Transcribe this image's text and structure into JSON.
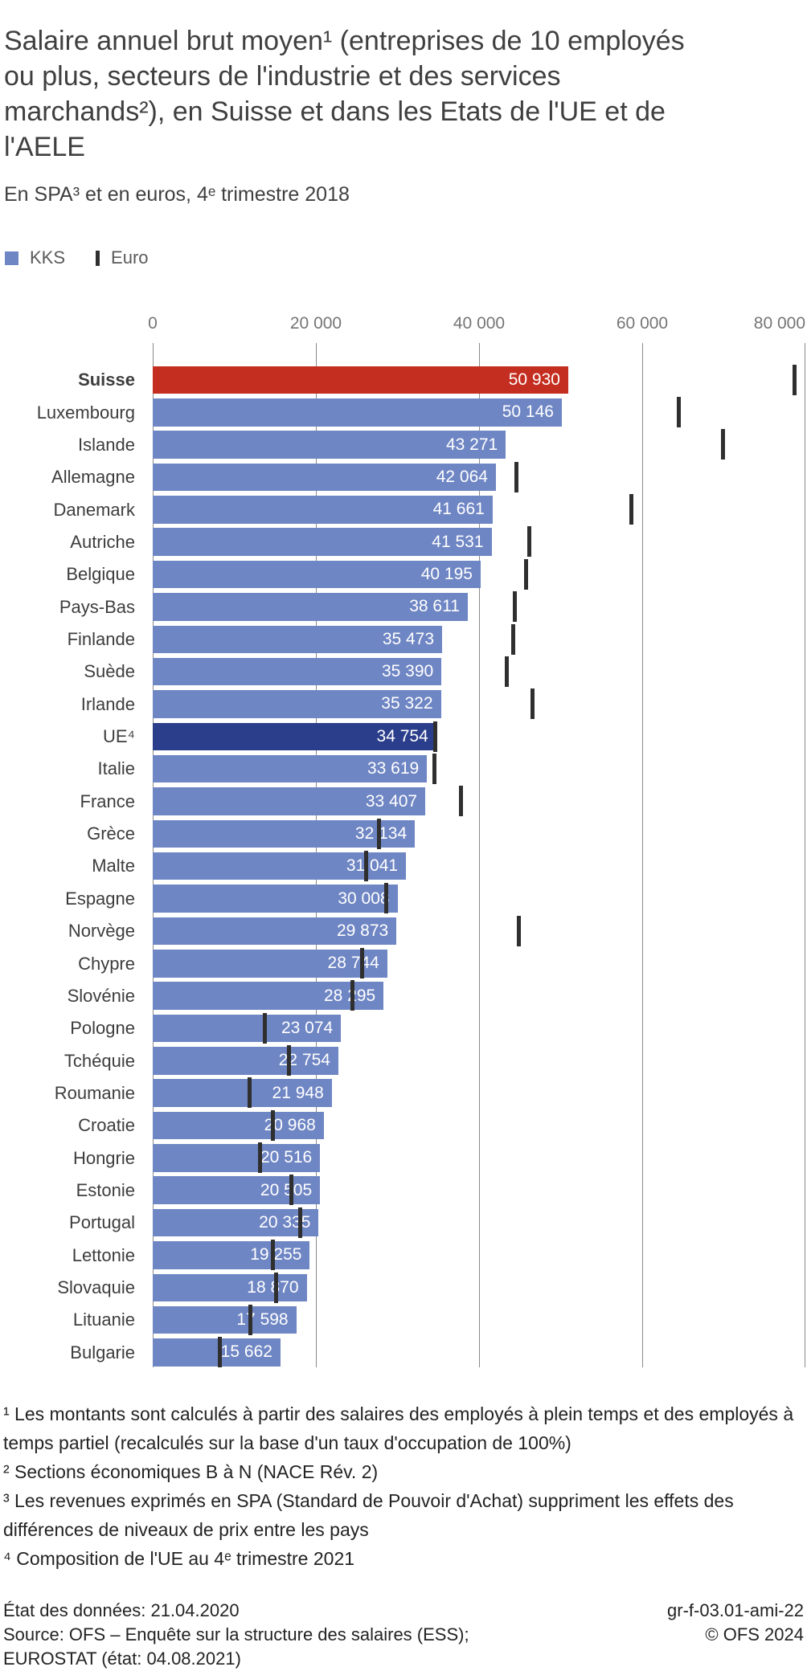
{
  "header": {
    "title": "Salaire annuel brut moyen¹ (entreprises de 10 employés ou plus, secteurs de l'industrie et des services marchands²), en Suisse et dans les Etats de l'UE et de l'AELE",
    "subtitle": "En SPA³ et en euros, 4ᵉ trimestre 2018"
  },
  "legend": {
    "kks_label": "KKS",
    "euro_label": "Euro"
  },
  "chart_data": {
    "type": "bar",
    "orientation": "horizontal",
    "title": "Salaire annuel brut moyen, en SPA et en euros, 4e trimestre 2018",
    "grid": true,
    "legend_position": "top-left",
    "x_axis": {
      "min": 0,
      "max": 80000,
      "tick_values": [
        0,
        20000,
        40000,
        60000,
        80000
      ],
      "tick_labels": [
        "0",
        "20 000",
        "40 000",
        "60 000",
        "80 000"
      ]
    },
    "series_note": "kks = bar length (labelled value in SPA/KKS); euro = position of dark tick mark, value estimated from chart pixels",
    "rows": [
      {
        "country": "Suisse",
        "kks": 50930,
        "kks_label": "50 930",
        "euro": 78700,
        "highlight": "suisse"
      },
      {
        "country": "Luxembourg",
        "kks": 50146,
        "kks_label": "50 146",
        "euro": 64500,
        "highlight": null
      },
      {
        "country": "Islande",
        "kks": 43271,
        "kks_label": "43 271",
        "euro": 69900,
        "highlight": null
      },
      {
        "country": "Allemagne",
        "kks": 42064,
        "kks_label": "42 064",
        "euro": 44600,
        "highlight": null
      },
      {
        "country": "Danemark",
        "kks": 41661,
        "kks_label": "41 661",
        "euro": 58700,
        "highlight": null
      },
      {
        "country": "Autriche",
        "kks": 41531,
        "kks_label": "41 531",
        "euro": 46200,
        "highlight": null
      },
      {
        "country": "Belgique",
        "kks": 40195,
        "kks_label": "40 195",
        "euro": 45800,
        "highlight": null
      },
      {
        "country": "Pays-Bas",
        "kks": 38611,
        "kks_label": "38 611",
        "euro": 44400,
        "highlight": null
      },
      {
        "country": "Finlande",
        "kks": 35473,
        "kks_label": "35 473",
        "euro": 44200,
        "highlight": null
      },
      {
        "country": "Suède",
        "kks": 35390,
        "kks_label": "35 390",
        "euro": 43400,
        "highlight": null
      },
      {
        "country": "Irlande",
        "kks": 35322,
        "kks_label": "35 322",
        "euro": 46600,
        "highlight": null
      },
      {
        "country": "UE⁴",
        "kks": 34754,
        "kks_label": "34 754",
        "euro": 34600,
        "highlight": "ue"
      },
      {
        "country": "Italie",
        "kks": 33619,
        "kks_label": "33 619",
        "euro": 34500,
        "highlight": null
      },
      {
        "country": "France",
        "kks": 33407,
        "kks_label": "33 407",
        "euro": 37800,
        "highlight": null
      },
      {
        "country": "Grèce",
        "kks": 32134,
        "kks_label": "32 134",
        "euro": 27700,
        "highlight": null
      },
      {
        "country": "Malte",
        "kks": 31041,
        "kks_label": "31 041",
        "euro": 26200,
        "highlight": null
      },
      {
        "country": "Espagne",
        "kks": 30008,
        "kks_label": "30 008",
        "euro": 28600,
        "highlight": null
      },
      {
        "country": "Norvège",
        "kks": 29873,
        "kks_label": "29 873",
        "euro": 44900,
        "highlight": null
      },
      {
        "country": "Chypre",
        "kks": 28744,
        "kks_label": "28 744",
        "euro": 25700,
        "highlight": null
      },
      {
        "country": "Slovénie",
        "kks": 28295,
        "kks_label": "28 295",
        "euro": 24500,
        "highlight": null
      },
      {
        "country": "Pologne",
        "kks": 23074,
        "kks_label": "23 074",
        "euro": 13700,
        "highlight": null
      },
      {
        "country": "Tchéquie",
        "kks": 22754,
        "kks_label": "22 754",
        "euro": 16700,
        "highlight": null
      },
      {
        "country": "Roumanie",
        "kks": 21948,
        "kks_label": "21 948",
        "euro": 11900,
        "highlight": null
      },
      {
        "country": "Croatie",
        "kks": 20968,
        "kks_label": "20 968",
        "euro": 14700,
        "highlight": null
      },
      {
        "country": "Hongrie",
        "kks": 20516,
        "kks_label": "20 516",
        "euro": 13200,
        "highlight": null
      },
      {
        "country": "Estonie",
        "kks": 20505,
        "kks_label": "20 505",
        "euro": 17000,
        "highlight": null
      },
      {
        "country": "Portugal",
        "kks": 20335,
        "kks_label": "20 335",
        "euro": 18100,
        "highlight": null
      },
      {
        "country": "Lettonie",
        "kks": 19255,
        "kks_label": "19 255",
        "euro": 14700,
        "highlight": null
      },
      {
        "country": "Slovaquie",
        "kks": 18870,
        "kks_label": "18 870",
        "euro": 15100,
        "highlight": null
      },
      {
        "country": "Lituanie",
        "kks": 17598,
        "kks_label": "17 598",
        "euro": 12000,
        "highlight": null
      },
      {
        "country": "Bulgarie",
        "kks": 15662,
        "kks_label": "15 662",
        "euro": 8200,
        "highlight": null
      }
    ]
  },
  "footnotes": [
    "¹ Les montants sont calculés à partir des salaires des employés à plein temps et des employés à temps partiel (recalculés sur la base d'un taux d'occupation de 100%)",
    "² Sections économiques B à N (NACE Rév. 2)",
    "³ Les revenues exprimés en SPA (Standard de Pouvoir d'Achat) suppriment les effets des différences de niveaux de prix entre les pays",
    "⁴ Composition de l'UE au 4ᵉ trimestre 2021"
  ],
  "footer": {
    "status": "État des données: 21.04.2020",
    "source_line1": "Source: OFS – Enquête sur la structure des salaires (ESS);",
    "source_line2": "EUROSTAT (état: 04.08.2021)",
    "reference": "gr-f-03.01-ami-22",
    "copyright": "© OFS 2024"
  },
  "colors": {
    "bar_default": "#6f86c4",
    "bar_suisse": "#c42e20",
    "bar_ue": "#2b3e8b",
    "euro_tick": "#2f2f2f",
    "gridline": "#8a8a8a",
    "axis_label": "#757575",
    "country_label": "#3d3d3d",
    "value_label": "#ffffff",
    "legend_text": "#5a5a5a",
    "title_text": "#3f3f3f",
    "footnote_text": "#232323"
  }
}
